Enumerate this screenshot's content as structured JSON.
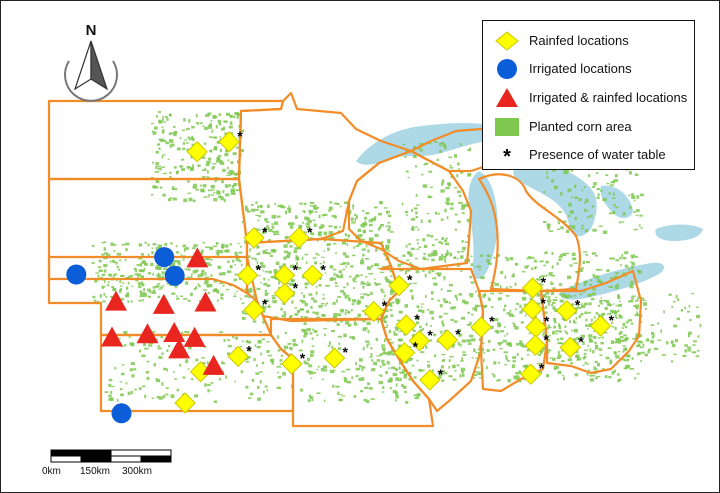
{
  "colors": {
    "lake": "#add8e6",
    "state_border": "#f28c28",
    "corn": "#7ec850",
    "rainfed": "#ffff00",
    "irrigated": "#0b5ed7",
    "irrigated_rainfed": "#e8261f"
  },
  "north_arrow": {
    "label": "N"
  },
  "legend": {
    "items": [
      {
        "symbol": "diamond",
        "label": "Rainfed locations"
      },
      {
        "symbol": "circle",
        "label": "Irrigated locations"
      },
      {
        "symbol": "triangle",
        "label": "Irrigated & rainfed locations"
      },
      {
        "symbol": "rect",
        "label": "Planted corn area"
      },
      {
        "symbol": "asterisk",
        "label": "Presence of water table"
      }
    ]
  },
  "scale_bar": {
    "labels": [
      "0km",
      "150km",
      "300km"
    ]
  },
  "sites": {
    "rainfed": [
      {
        "lat": 47.27,
        "lon": -98.6,
        "water_table": false
      },
      {
        "lat": 47.51,
        "lon": -97.22,
        "water_table": true
      },
      {
        "lat": 45.18,
        "lon": -96.15,
        "water_table": true
      },
      {
        "lat": 45.18,
        "lon": -94.21,
        "water_table": true
      },
      {
        "lat": 44.27,
        "lon": -96.42,
        "water_table": true
      },
      {
        "lat": 44.27,
        "lon": -94.83,
        "water_table": true
      },
      {
        "lat": 44.27,
        "lon": -93.63,
        "water_table": true
      },
      {
        "lat": 43.83,
        "lon": -94.83,
        "water_table": true
      },
      {
        "lat": 43.43,
        "lon": -96.15,
        "water_table": true
      },
      {
        "lat": 44.02,
        "lon": -89.9,
        "water_table": true
      },
      {
        "lat": 43.96,
        "lon": -84.14,
        "water_table": true
      },
      {
        "lat": 43.39,
        "lon": -90.99,
        "water_table": true
      },
      {
        "lat": 43.45,
        "lon": -84.15,
        "water_table": true
      },
      {
        "lat": 43.41,
        "lon": -82.67,
        "water_table": true
      },
      {
        "lat": 43.06,
        "lon": -89.59,
        "water_table": true
      },
      {
        "lat": 43.01,
        "lon": -86.36,
        "water_table": true
      },
      {
        "lat": 43.01,
        "lon": -84.0,
        "water_table": true
      },
      {
        "lat": 43.04,
        "lon": -81.21,
        "water_table": true
      },
      {
        "lat": 42.68,
        "lon": -89.02,
        "water_table": true
      },
      {
        "lat": 42.7,
        "lon": -87.82,
        "water_table": true
      },
      {
        "lat": 42.57,
        "lon": -84.02,
        "water_table": true
      },
      {
        "lat": 42.39,
        "lon": -89.66,
        "water_table": true
      },
      {
        "lat": 42.52,
        "lon": -82.52,
        "water_table": true
      },
      {
        "lat": 42.3,
        "lon": -96.83,
        "water_table": true
      },
      {
        "lat": 42.12,
        "lon": -94.52,
        "water_table": true
      },
      {
        "lat": 42.26,
        "lon": -92.68,
        "water_table": true
      },
      {
        "lat": 41.93,
        "lon": -98.45,
        "water_table": false
      },
      {
        "lat": 41.87,
        "lon": -84.22,
        "water_table": true
      },
      {
        "lat": 41.73,
        "lon": -88.57,
        "water_table": true
      },
      {
        "lat": 41.17,
        "lon": -99.12,
        "water_table": false
      }
    ],
    "irrigated": [
      {
        "lat": 44.29,
        "lon": -103.81,
        "water_table": false
      },
      {
        "lat": 44.71,
        "lon": -100.02,
        "water_table": false
      },
      {
        "lat": 44.26,
        "lon": -99.57,
        "water_table": false
      },
      {
        "lat": 40.92,
        "lon": -101.86,
        "water_table": false
      }
    ],
    "irrigated_rainfed": [
      {
        "lat": 44.68,
        "lon": -98.59,
        "water_table": false
      },
      {
        "lat": 43.55,
        "lon": -100.04,
        "water_table": false
      },
      {
        "lat": 43.61,
        "lon": -98.24,
        "water_table": false
      },
      {
        "lat": 43.63,
        "lon": -102.1,
        "water_table": false
      },
      {
        "lat": 42.76,
        "lon": -102.27,
        "water_table": false
      },
      {
        "lat": 42.84,
        "lon": -100.74,
        "water_table": false
      },
      {
        "lat": 42.87,
        "lon": -99.59,
        "water_table": false
      },
      {
        "lat": 42.75,
        "lon": -98.71,
        "water_table": false
      },
      {
        "lat": 42.47,
        "lon": -99.38,
        "water_table": false
      },
      {
        "lat": 42.07,
        "lon": -97.89,
        "water_table": false
      }
    ]
  }
}
